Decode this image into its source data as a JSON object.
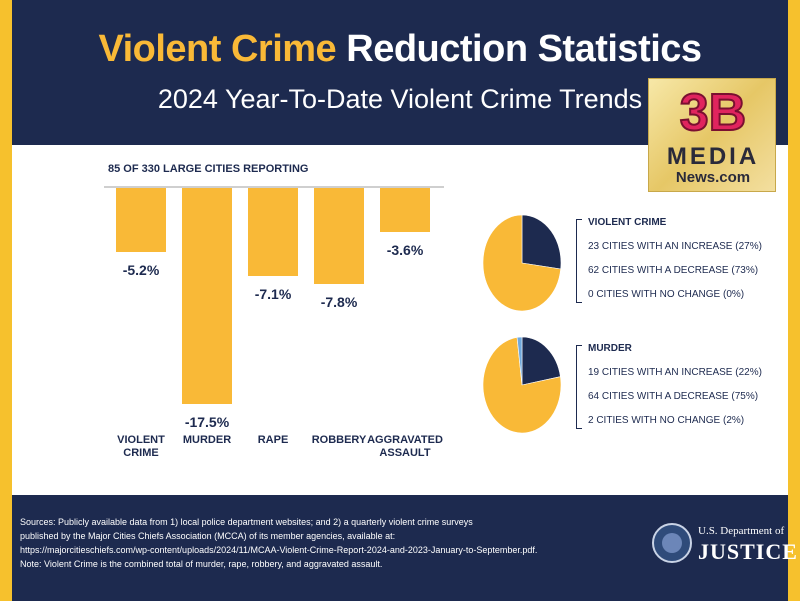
{
  "header": {
    "title_accent": "Violent Crime",
    "title_rest": " Reduction Statistics",
    "subtitle": "2024 Year-To-Date Violent Crime Trends"
  },
  "logo": {
    "top": "3B",
    "middle": "MEDIA",
    "bottom": "News.com"
  },
  "colors": {
    "navy": "#1d2a4f",
    "gold": "#f9b937",
    "border": "#f6c12d"
  },
  "chart_data": [
    {
      "type": "bar",
      "title": "85 OF 330 LARGE CITIES REPORTING",
      "categories": [
        "VIOLENT CRIME",
        "MURDER",
        "RAPE",
        "ROBBERY",
        "AGGRAVATED ASSAULT"
      ],
      "category_lines": [
        [
          "VIOLENT",
          "CRIME"
        ],
        [
          "MURDER"
        ],
        [
          "RAPE"
        ],
        [
          "ROBBERY"
        ],
        [
          "AGGRAVATED",
          "ASSAULT"
        ]
      ],
      "values": [
        -5.2,
        -17.5,
        -7.1,
        -7.8,
        -3.6
      ],
      "labels": [
        "-5.2%",
        "-17.5%",
        "-7.1%",
        "-7.8%",
        "-3.6%"
      ],
      "ylim": [
        -17.5,
        0
      ]
    },
    {
      "type": "pie",
      "title": "VIOLENT CRIME",
      "labels": [
        "23 CITIES WITH AN INCREASE (27%)",
        "62 CITIES WITH A DECREASE (73%)",
        "0 CITIES WITH NO CHANGE (0%)"
      ],
      "values": [
        27,
        73,
        0
      ],
      "colors": [
        "#1d2a4f",
        "#f9b937",
        "#6fa8dc"
      ]
    },
    {
      "type": "pie",
      "title": "MURDER",
      "labels": [
        "19 CITIES WITH AN INCREASE (22%)",
        "64 CITIES WITH A DECREASE (75%)",
        "2 CITIES WITH NO CHANGE (2%)"
      ],
      "values": [
        22,
        75,
        2
      ],
      "colors": [
        "#1d2a4f",
        "#f9b937",
        "#6fa8dc"
      ]
    }
  ],
  "footer": {
    "sources_lines": [
      "Sources: Publicly available data from 1) local police department websites; and 2) a quarterly violent crime surveys",
      "published by the Major Cities Chiefs Association (MCCA) of its member agencies, available at:",
      "https://majorcitieschiefs.com/wp-content/uploads/2024/11/MCAA-Violent-Crime-Report-2024-and-2023-January-to-September.pdf.",
      "Note: Violent Crime is the combined total of murder, rape, robbery, and aggravated assault."
    ],
    "doj_line1": "U.S. Department of",
    "doj_line2": "JUSTICE"
  }
}
